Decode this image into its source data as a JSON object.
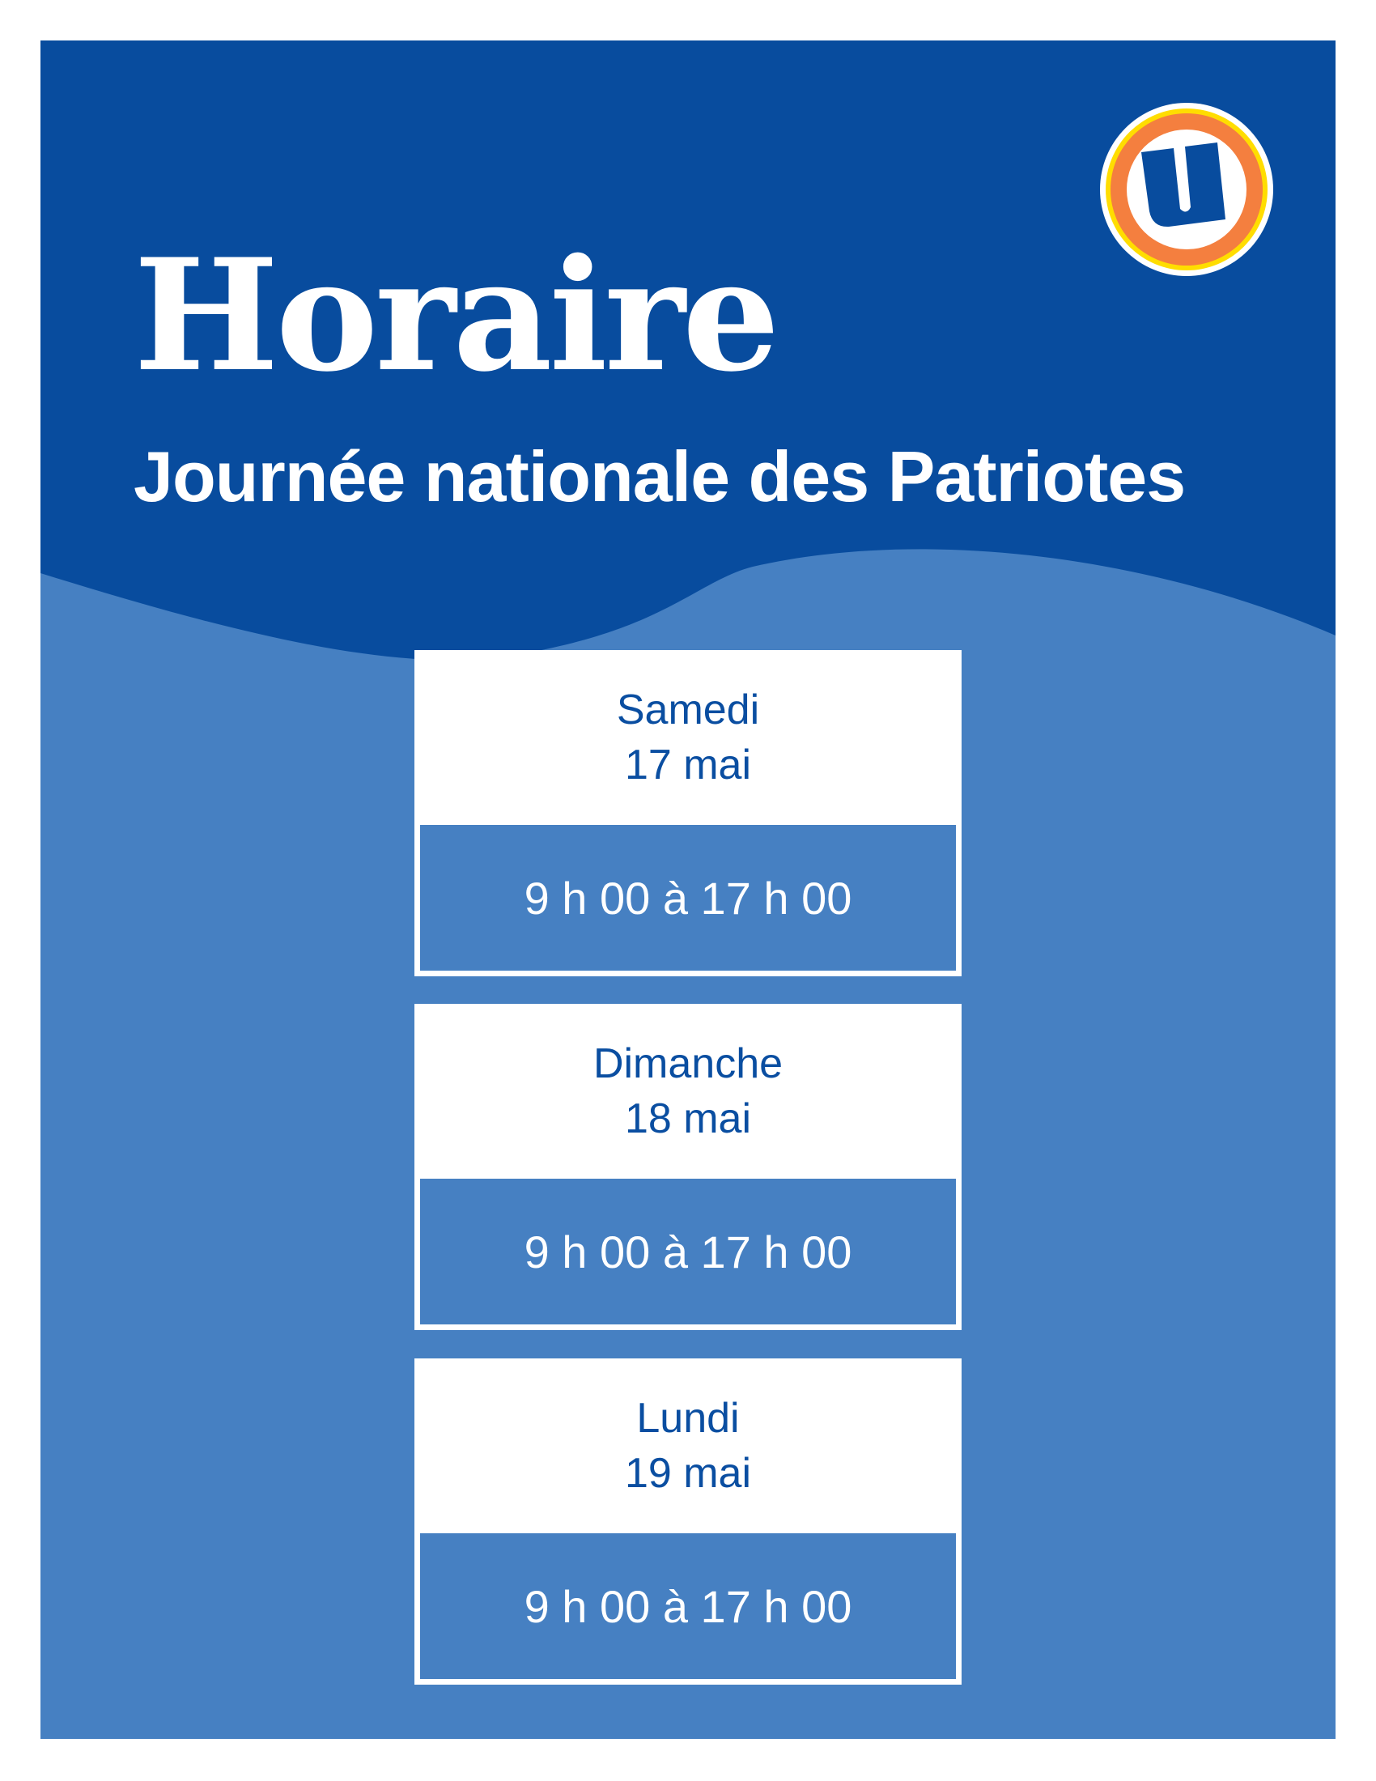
{
  "header": {
    "title": "Horaire",
    "subtitle": "Journée nationale des Patriotes"
  },
  "logo": {
    "name": "U logo",
    "letter": "U"
  },
  "colors": {
    "dark_blue": "#084c9e",
    "light_blue": "#4680c2",
    "orange": "#f47f3f",
    "yellow": "#ffdd00",
    "text_blue": "#0a4ea1"
  },
  "schedule": [
    {
      "day": "Samedi",
      "date": "17 mai",
      "hours": "9 h 00 à 17 h 00"
    },
    {
      "day": "Dimanche",
      "date": "18 mai",
      "hours": "9 h 00 à 17 h 00"
    },
    {
      "day": "Lundi",
      "date": "19 mai",
      "hours": "9 h 00 à 17 h 00"
    }
  ]
}
